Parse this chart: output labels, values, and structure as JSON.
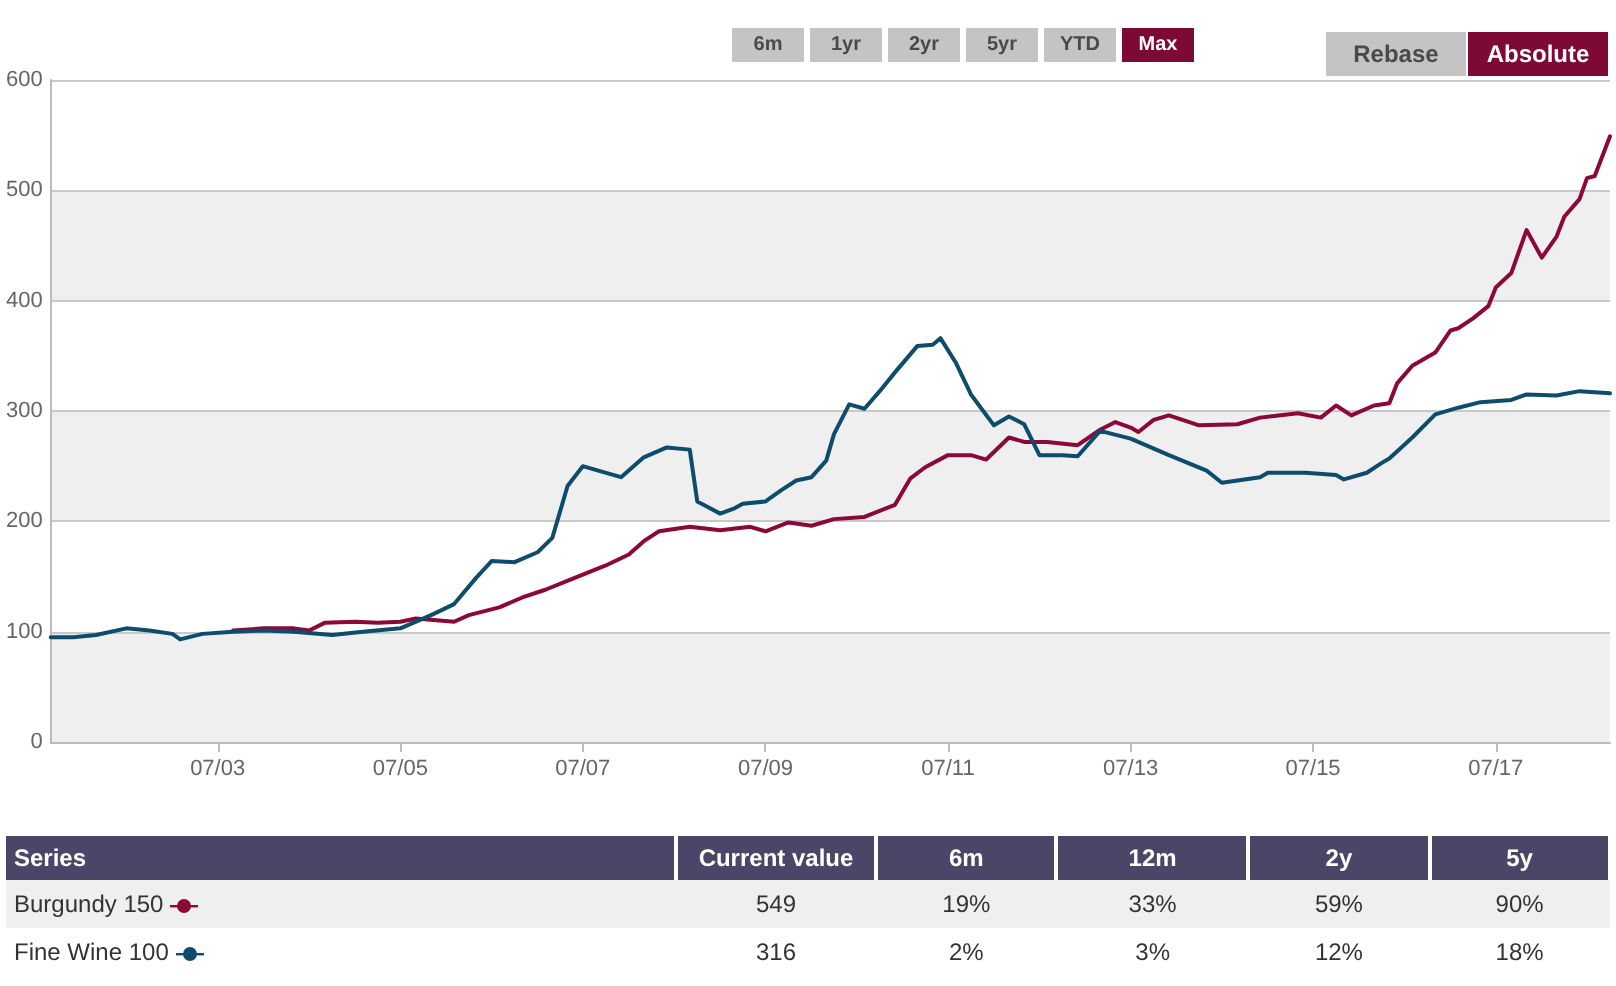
{
  "chart_data": {
    "type": "line",
    "xlim": [
      "2001-09",
      "2018-10"
    ],
    "xticks": [
      {
        "value": "2003-07",
        "label": "07/03"
      },
      {
        "value": "2005-07",
        "label": "07/05"
      },
      {
        "value": "2007-07",
        "label": "07/07"
      },
      {
        "value": "2009-07",
        "label": "07/09"
      },
      {
        "value": "2011-07",
        "label": "07/11"
      },
      {
        "value": "2013-07",
        "label": "07/13"
      },
      {
        "value": "2015-07",
        "label": "07/15"
      },
      {
        "value": "2017-07",
        "label": "07/17"
      }
    ],
    "ylim": [
      0,
      600
    ],
    "yticks": [
      0,
      100,
      200,
      300,
      400,
      500,
      600
    ],
    "grid": "y",
    "legend": "bottom",
    "marker": "none",
    "line_style": "solid",
    "annotations": [
      "6m",
      "1yr",
      "2yr",
      "5yr",
      "YTD",
      "Max",
      "Rebase",
      "Absolute",
      "Series",
      "Current value",
      "6m",
      "12m",
      "2y",
      "5y",
      "549",
      "19%",
      "33%",
      "59%",
      "90%",
      "316",
      "2%",
      "3%",
      "12%",
      "18%"
    ],
    "series": [
      {
        "name": "Burgundy 150",
        "color": "#8b0838",
        "x": [
          "2003-09",
          "2004-01",
          "2004-05",
          "2004-07",
          "2004-09",
          "2005-01",
          "2005-04",
          "2005-07",
          "2005-09",
          "2006-02",
          "2006-04",
          "2006-08",
          "2006-11",
          "2007-02",
          "2007-06",
          "2007-10",
          "2008-01",
          "2008-03",
          "2008-05",
          "2008-09",
          "2009-01",
          "2009-05",
          "2009-07",
          "2009-10",
          "2010-01",
          "2010-04",
          "2010-08",
          "2010-12",
          "2011-02",
          "2011-04",
          "2011-07",
          "2011-10",
          "2011-12",
          "2012-03",
          "2012-05",
          "2012-08",
          "2012-12",
          "2013-03",
          "2013-05",
          "2013-07",
          "2013-08",
          "2013-10",
          "2013-12",
          "2014-04",
          "2014-09",
          "2014-12",
          "2015-05",
          "2015-08",
          "2015-10",
          "2015-12",
          "2016-03",
          "2016-05",
          "2016-06",
          "2016-08",
          "2016-11",
          "2017-01",
          "2017-02",
          "2017-04",
          "2017-06",
          "2017-07",
          "2017-09",
          "2017-11",
          "2018-01",
          "2018-03",
          "2018-04",
          "2018-06",
          "2018-07",
          "2018-08",
          "2018-10"
        ],
        "values": [
          101,
          103,
          103,
          101,
          108,
          109,
          108,
          109,
          112,
          109,
          115,
          122,
          131,
          138,
          149,
          160,
          170,
          182,
          191,
          195,
          192,
          195,
          191,
          199,
          196,
          202,
          204,
          215,
          239,
          249,
          260,
          260,
          256,
          276,
          272,
          272,
          269,
          283,
          290,
          285,
          281,
          292,
          296,
          287,
          288,
          294,
          298,
          294,
          305,
          296,
          305,
          307,
          325,
          341,
          353,
          373,
          375,
          384,
          395,
          412,
          425,
          464,
          439,
          458,
          476,
          492,
          511,
          513,
          549
        ]
      },
      {
        "name": "Fine Wine 100",
        "color": "#0e4c6e",
        "x": [
          "2001-09",
          "2001-12",
          "2002-03",
          "2002-07",
          "2002-10",
          "2003-01",
          "2003-02",
          "2003-05",
          "2003-09",
          "2004-01",
          "2004-05",
          "2004-10",
          "2005-02",
          "2005-07",
          "2005-11",
          "2006-02",
          "2006-05",
          "2006-07",
          "2006-10",
          "2007-01",
          "2007-03",
          "2007-05",
          "2007-07",
          "2007-09",
          "2007-12",
          "2008-03",
          "2008-06",
          "2008-09",
          "2008-10",
          "2009-01",
          "2009-03",
          "2009-04",
          "2009-07",
          "2009-09",
          "2009-11",
          "2010-01",
          "2010-03",
          "2010-04",
          "2010-06",
          "2010-08",
          "2010-10",
          "2010-12",
          "2011-03",
          "2011-05",
          "2011-06",
          "2011-08",
          "2011-10",
          "2012-01",
          "2012-03",
          "2012-05",
          "2012-07",
          "2012-10",
          "2012-12",
          "2013-03",
          "2013-07",
          "2013-12",
          "2014-05",
          "2014-07",
          "2014-12",
          "2015-01",
          "2015-06",
          "2015-10",
          "2015-11",
          "2016-02",
          "2016-04",
          "2016-05",
          "2016-08",
          "2016-11",
          "2017-02",
          "2017-05",
          "2017-09",
          "2017-11",
          "2018-03",
          "2018-06",
          "2018-10"
        ],
        "values": [
          95,
          95,
          97,
          103,
          101,
          98,
          93,
          98,
          100,
          101,
          100,
          97,
          100,
          103,
          115,
          125,
          149,
          164,
          163,
          172,
          185,
          232,
          250,
          246,
          240,
          258,
          267,
          265,
          218,
          207,
          212,
          216,
          218,
          228,
          237,
          240,
          255,
          279,
          306,
          302,
          318,
          335,
          359,
          360,
          366,
          344,
          315,
          287,
          295,
          288,
          260,
          260,
          259,
          282,
          275,
          260,
          246,
          235,
          240,
          244,
          244,
          242,
          238,
          244,
          253,
          257,
          276,
          297,
          303,
          308,
          310,
          315,
          314,
          318,
          316
        ]
      }
    ]
  }
}
